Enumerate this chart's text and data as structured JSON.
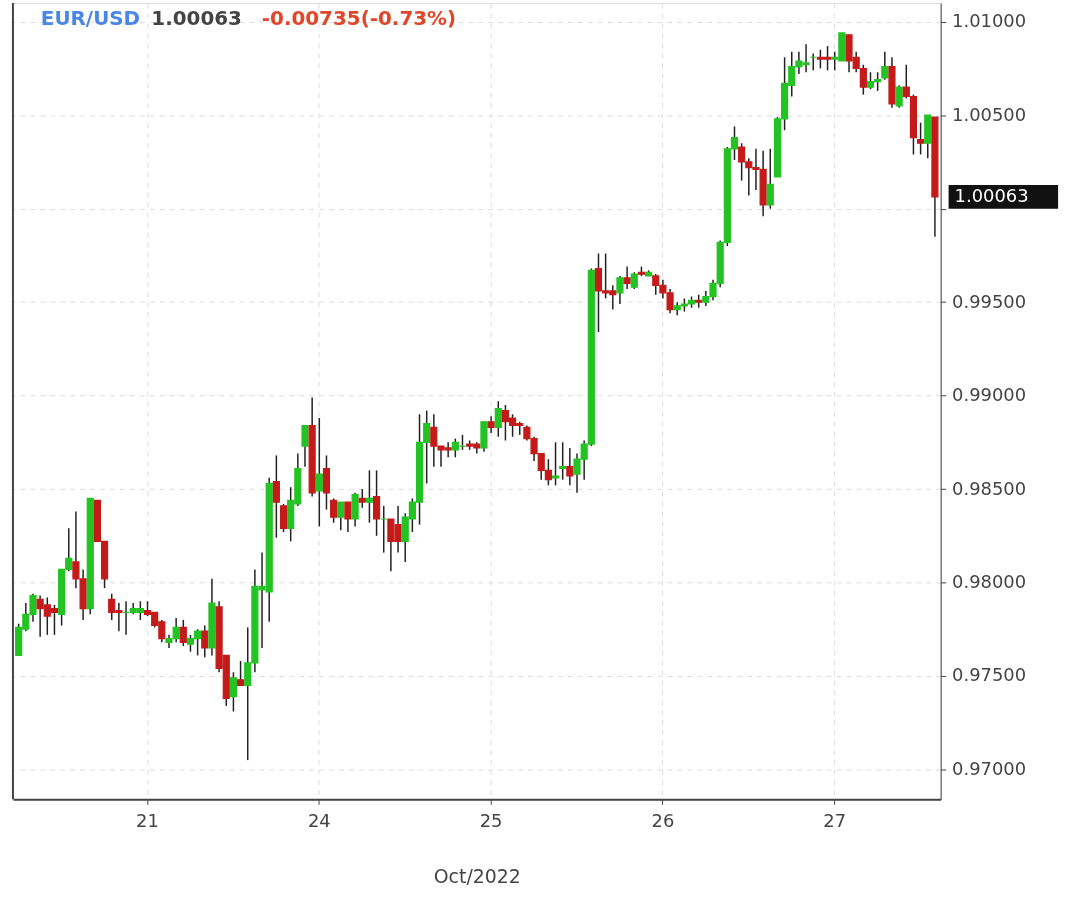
{
  "chart_data": {
    "type": "candlestick",
    "title": "EUR/USD 1.00063 -0.00735(-0.73%)",
    "xlabel": "Oct/2022",
    "categories": [
      null,
      null,
      null,
      null,
      null,
      null,
      null,
      null,
      null,
      null,
      null,
      null,
      null,
      null,
      null,
      null,
      null,
      null,
      "21",
      null,
      null,
      null,
      null,
      null,
      null,
      null,
      null,
      null,
      null,
      null,
      null,
      null,
      null,
      null,
      null,
      null,
      null,
      null,
      null,
      null,
      null,
      null,
      "24",
      null,
      null,
      null,
      null,
      null,
      null,
      null,
      null,
      null,
      null,
      null,
      null,
      null,
      null,
      null,
      null,
      null,
      null,
      null,
      null,
      null,
      null,
      null,
      "25",
      null,
      null,
      null,
      null,
      null,
      null,
      null,
      null,
      null,
      null,
      null,
      null,
      null,
      null,
      null,
      null,
      null,
      null,
      null,
      null,
      null,
      null,
      null,
      "26",
      null,
      null,
      null,
      null,
      null,
      null,
      null,
      null,
      null,
      null,
      null,
      null,
      null,
      null,
      null,
      null,
      null,
      null,
      null,
      null,
      null,
      null,
      null,
      "27",
      null,
      null,
      null,
      null,
      null,
      null,
      null,
      null,
      null,
      null,
      null,
      null,
      null,
      null
    ],
    "ohlc": [
      [
        0.9761,
        0.9778,
        0.9761,
        0.9776
      ],
      [
        0.9775,
        0.9789,
        0.9774,
        0.9783
      ],
      [
        0.9783,
        0.9794,
        0.9779,
        0.9793
      ],
      [
        0.9791,
        0.9793,
        0.9771,
        0.9786
      ],
      [
        0.9788,
        0.9792,
        0.9772,
        0.9782
      ],
      [
        0.9786,
        0.9788,
        0.9772,
        0.9784
      ],
      [
        0.9783,
        0.9807,
        0.9777,
        0.9807
      ],
      [
        0.9807,
        0.9829,
        0.9806,
        0.9813
      ],
      [
        0.9811,
        0.9838,
        0.9797,
        0.9802
      ],
      [
        0.9802,
        0.9807,
        0.978,
        0.9786
      ],
      [
        0.9786,
        0.9845,
        0.9783,
        0.9845
      ],
      [
        0.9844,
        0.9844,
        0.9822,
        0.9822
      ],
      [
        0.9822,
        0.9822,
        0.9797,
        0.9802
      ],
      [
        0.9791,
        0.9794,
        0.978,
        0.9784
      ],
      [
        0.9785,
        0.9789,
        0.9774,
        0.9784
      ],
      [
        0.9784,
        0.979,
        0.9772,
        0.9784
      ],
      [
        0.9784,
        0.9789,
        0.9783,
        0.9786
      ],
      [
        0.9784,
        0.979,
        0.978,
        0.9786
      ],
      [
        0.9785,
        0.979,
        0.9782,
        0.9783
      ],
      [
        0.9784,
        0.9784,
        0.9776,
        0.9777
      ],
      [
        0.9779,
        0.978,
        0.9768,
        0.977
      ],
      [
        0.9768,
        0.9772,
        0.9765,
        0.977
      ],
      [
        0.977,
        0.9781,
        0.9768,
        0.9776
      ],
      [
        0.9776,
        0.978,
        0.9766,
        0.9768
      ],
      [
        0.9767,
        0.9772,
        0.9763,
        0.977
      ],
      [
        0.977,
        0.9775,
        0.9761,
        0.9774
      ],
      [
        0.9774,
        0.9777,
        0.976,
        0.9765
      ],
      [
        0.9765,
        0.9802,
        0.9761,
        0.9789
      ],
      [
        0.9787,
        0.979,
        0.9752,
        0.9754
      ],
      [
        0.9761,
        0.9761,
        0.9734,
        0.9738
      ],
      [
        0.9739,
        0.9752,
        0.9731,
        0.9749
      ],
      [
        0.9748,
        0.9758,
        0.9745,
        0.9745
      ],
      [
        0.9745,
        0.9776,
        0.9705,
        0.9757
      ],
      [
        0.9757,
        0.9807,
        0.9752,
        0.9798
      ],
      [
        0.9796,
        0.9816,
        0.9765,
        0.9798
      ],
      [
        0.9795,
        0.9856,
        0.9779,
        0.9853
      ],
      [
        0.9854,
        0.9868,
        0.9824,
        0.9843
      ],
      [
        0.9841,
        0.9842,
        0.9827,
        0.9829
      ],
      [
        0.9829,
        0.9851,
        0.9822,
        0.9844
      ],
      [
        0.9842,
        0.9869,
        0.9841,
        0.9861
      ],
      [
        0.9873,
        0.9884,
        0.9862,
        0.9884
      ],
      [
        0.9884,
        0.9899,
        0.9846,
        0.9848
      ],
      [
        0.9849,
        0.9888,
        0.983,
        0.9858
      ],
      [
        0.9861,
        0.9868,
        0.9839,
        0.9848
      ],
      [
        0.9844,
        0.9845,
        0.9832,
        0.9835
      ],
      [
        0.9835,
        0.9843,
        0.9828,
        0.9843
      ],
      [
        0.9843,
        0.9843,
        0.9827,
        0.9834
      ],
      [
        0.9834,
        0.9848,
        0.983,
        0.9847
      ],
      [
        0.9845,
        0.985,
        0.984,
        0.9843
      ],
      [
        0.9843,
        0.986,
        0.9832,
        0.9845
      ],
      [
        0.9846,
        0.986,
        0.9825,
        0.9834
      ],
      [
        0.9834,
        0.9841,
        0.9816,
        0.9834
      ],
      [
        0.9834,
        0.9834,
        0.9806,
        0.9822
      ],
      [
        0.9831,
        0.9841,
        0.9816,
        0.9822
      ],
      [
        0.9822,
        0.9837,
        0.9811,
        0.9835
      ],
      [
        0.9834,
        0.9845,
        0.9827,
        0.9843
      ],
      [
        0.9843,
        0.989,
        0.9831,
        0.9875
      ],
      [
        0.9875,
        0.9892,
        0.9853,
        0.9885
      ],
      [
        0.9883,
        0.989,
        0.9862,
        0.9873
      ],
      [
        0.9873,
        0.9873,
        0.9862,
        0.9871
      ],
      [
        0.9872,
        0.9875,
        0.9867,
        0.9871
      ],
      [
        0.9871,
        0.9877,
        0.9867,
        0.9875
      ],
      [
        0.9873,
        0.9879,
        0.9871,
        0.9873
      ],
      [
        0.9874,
        0.9876,
        0.9871,
        0.9873
      ],
      [
        0.9874,
        0.9875,
        0.9869,
        0.9872
      ],
      [
        0.9872,
        0.9886,
        0.987,
        0.9886
      ],
      [
        0.9886,
        0.9889,
        0.988,
        0.9883
      ],
      [
        0.9883,
        0.9897,
        0.9878,
        0.9893
      ],
      [
        0.9892,
        0.9895,
        0.9876,
        0.9886
      ],
      [
        0.9888,
        0.989,
        0.9878,
        0.9884
      ],
      [
        0.9885,
        0.9886,
        0.9879,
        0.9884
      ],
      [
        0.9883,
        0.9884,
        0.9876,
        0.9877
      ],
      [
        0.9877,
        0.9878,
        0.9865,
        0.9869
      ],
      [
        0.9869,
        0.9869,
        0.9855,
        0.986
      ],
      [
        0.986,
        0.9866,
        0.9852,
        0.9855
      ],
      [
        0.9856,
        0.9875,
        0.9852,
        0.9857
      ],
      [
        0.9861,
        0.9875,
        0.9855,
        0.9862
      ],
      [
        0.9862,
        0.9872,
        0.9852,
        0.9857
      ],
      [
        0.9858,
        0.9869,
        0.9848,
        0.9866
      ],
      [
        0.9866,
        0.9876,
        0.9855,
        0.9874
      ],
      [
        0.9874,
        0.9968,
        0.9873,
        0.9967
      ],
      [
        0.9968,
        0.9976,
        0.9934,
        0.9956
      ],
      [
        0.9956,
        0.9976,
        0.9952,
        0.9955
      ],
      [
        0.9956,
        0.9959,
        0.9946,
        0.9954
      ],
      [
        0.9955,
        0.9964,
        0.9949,
        0.9963
      ],
      [
        0.9963,
        0.9969,
        0.9957,
        0.996
      ],
      [
        0.9958,
        0.9966,
        0.9957,
        0.9965
      ],
      [
        0.9966,
        0.9969,
        0.9964,
        0.9965
      ],
      [
        0.9964,
        0.9967,
        0.9964,
        0.9966
      ],
      [
        0.9964,
        0.9965,
        0.9954,
        0.9959
      ],
      [
        0.9959,
        0.9962,
        0.9952,
        0.9955
      ],
      [
        0.9955,
        0.9957,
        0.9944,
        0.9946
      ],
      [
        0.9946,
        0.995,
        0.9943,
        0.9948
      ],
      [
        0.9948,
        0.9952,
        0.9945,
        0.9949
      ],
      [
        0.9949,
        0.9953,
        0.9947,
        0.9951
      ],
      [
        0.9951,
        0.9954,
        0.9947,
        0.995
      ],
      [
        0.995,
        0.9956,
        0.9948,
        0.9953
      ],
      [
        0.9953,
        0.9962,
        0.9951,
        0.996
      ],
      [
        0.996,
        0.9983,
        0.9958,
        0.9982
      ],
      [
        0.9982,
        1.0033,
        0.998,
        1.0032
      ],
      [
        1.0032,
        1.0044,
        1.0026,
        1.0038
      ],
      [
        1.0033,
        1.0035,
        1.0015,
        1.0025
      ],
      [
        1.0025,
        1.0027,
        1.0007,
        1.0022
      ],
      [
        1.0022,
        1.0032,
        1.001,
        1.0021
      ],
      [
        1.0021,
        1.0031,
        0.9996,
        1.0002
      ],
      [
        1.0002,
        1.0032,
        1.0,
        1.0013
      ],
      [
        1.0017,
        1.0049,
        1.0017,
        1.0048
      ],
      [
        1.0048,
        1.0081,
        1.0042,
        1.0067
      ],
      [
        1.0066,
        1.0084,
        1.006,
        1.0076
      ],
      [
        1.0076,
        1.0084,
        1.0072,
        1.0079
      ],
      [
        1.0077,
        1.0088,
        1.0073,
        1.0078
      ],
      [
        1.0081,
        1.0083,
        1.0074,
        1.0081
      ],
      [
        1.0081,
        1.0085,
        1.0075,
        1.008
      ],
      [
        1.0081,
        1.0087,
        1.0074,
        1.008
      ],
      [
        1.008,
        1.0084,
        1.0074,
        1.0081
      ],
      [
        1.0079,
        1.0094,
        1.0079,
        1.0094
      ],
      [
        1.0093,
        1.0093,
        1.0073,
        1.0079
      ],
      [
        1.0081,
        1.0084,
        1.0073,
        1.0075
      ],
      [
        1.0075,
        1.0077,
        1.0061,
        1.0065
      ],
      [
        1.0065,
        1.0073,
        1.0064,
        1.0068
      ],
      [
        1.0068,
        1.0073,
        1.0063,
        1.0069
      ],
      [
        1.007,
        1.0084,
        1.0069,
        1.0076
      ],
      [
        1.0076,
        1.0081,
        1.0054,
        1.0056
      ],
      [
        1.0055,
        1.0066,
        1.0054,
        1.0065
      ],
      [
        1.0065,
        1.0077,
        1.0059,
        1.006
      ],
      [
        1.006,
        1.0061,
        1.0029,
        1.0038
      ],
      [
        1.0037,
        1.0046,
        1.0029,
        1.0035
      ],
      [
        1.0035,
        1.005,
        1.0027,
        1.005
      ],
      [
        1.0049,
        1.0049,
        0.9985,
        1.00063
      ]
    ],
    "colors": [
      "#22c322",
      "#22c322",
      "#22c322",
      "#c41a1a",
      "#c41a1a",
      "#c41a1a",
      "#22c322",
      "#22c322",
      "#c41a1a",
      "#c41a1a",
      "#22c322",
      "#c41a1a",
      "#c41a1a",
      "#c41a1a",
      "#c41a1a",
      "#22c322",
      "#22c322",
      "#22c322",
      "#c41a1a",
      "#c41a1a",
      "#c41a1a",
      "#22c322",
      "#22c322",
      "#c41a1a",
      "#22c322",
      "#22c322",
      "#c41a1a",
      "#22c322",
      "#c41a1a",
      "#c41a1a",
      "#22c322",
      "#c41a1a",
      "#22c322",
      "#22c322",
      "#22c322",
      "#22c322",
      "#c41a1a",
      "#c41a1a",
      "#22c322",
      "#22c322",
      "#22c322",
      "#c41a1a",
      "#22c322",
      "#c41a1a",
      "#c41a1a",
      "#22c322",
      "#c41a1a",
      "#22c322",
      "#c41a1a",
      "#22c322",
      "#c41a1a",
      "#22c322",
      "#c41a1a",
      "#c41a1a",
      "#22c322",
      "#22c322",
      "#22c322",
      "#22c322",
      "#c41a1a",
      "#c41a1a",
      "#c41a1a",
      "#22c322",
      "#22c322",
      "#c41a1a",
      "#c41a1a",
      "#22c322",
      "#c41a1a",
      "#22c322",
      "#c41a1a",
      "#c41a1a",
      "#c41a1a",
      "#c41a1a",
      "#c41a1a",
      "#c41a1a",
      "#c41a1a",
      "#22c322",
      "#22c322",
      "#c41a1a",
      "#22c322",
      "#22c322",
      "#22c322",
      "#c41a1a",
      "#c41a1a",
      "#c41a1a",
      "#22c322",
      "#c41a1a",
      "#22c322",
      "#c41a1a",
      "#22c322",
      "#c41a1a",
      "#c41a1a",
      "#c41a1a",
      "#22c322",
      "#22c322",
      "#22c322",
      "#c41a1a",
      "#22c322",
      "#22c322",
      "#22c322",
      "#22c322",
      "#22c322",
      "#c41a1a",
      "#c41a1a",
      "#c41a1a",
      "#c41a1a",
      "#22c322",
      "#22c322",
      "#22c322",
      "#22c322",
      "#22c322",
      "#22c322",
      "#22c322",
      "#c41a1a",
      "#c41a1a",
      "#22c322",
      "#22c322",
      "#c41a1a",
      "#c41a1a",
      "#c41a1a",
      "#22c322",
      "#22c322",
      "#22c322",
      "#c41a1a",
      "#22c322",
      "#c41a1a",
      "#c41a1a",
      "#c41a1a",
      "#22c322",
      "#c41a1a"
    ],
    "ylim": [
      0.9684,
      1.011
    ],
    "yticks": [
      {
        "value": 0.97,
        "label": "0.97000"
      },
      {
        "value": 0.975,
        "label": "0.97500"
      },
      {
        "value": 0.98,
        "label": "0.98000"
      },
      {
        "value": 0.985,
        "label": "0.98500"
      },
      {
        "value": 0.99,
        "label": "0.99000"
      },
      {
        "value": 0.995,
        "label": "0.99500"
      },
      {
        "value": 1.0,
        "label": null
      },
      {
        "value": 1.005,
        "label": "1.00500"
      },
      {
        "value": 1.01,
        "label": "1.01000"
      }
    ],
    "ref_lines": [
      {
        "axis": "y",
        "value": 1.00063,
        "label": "1.00063",
        "color": "#111111"
      }
    ],
    "grid": true
  }
}
